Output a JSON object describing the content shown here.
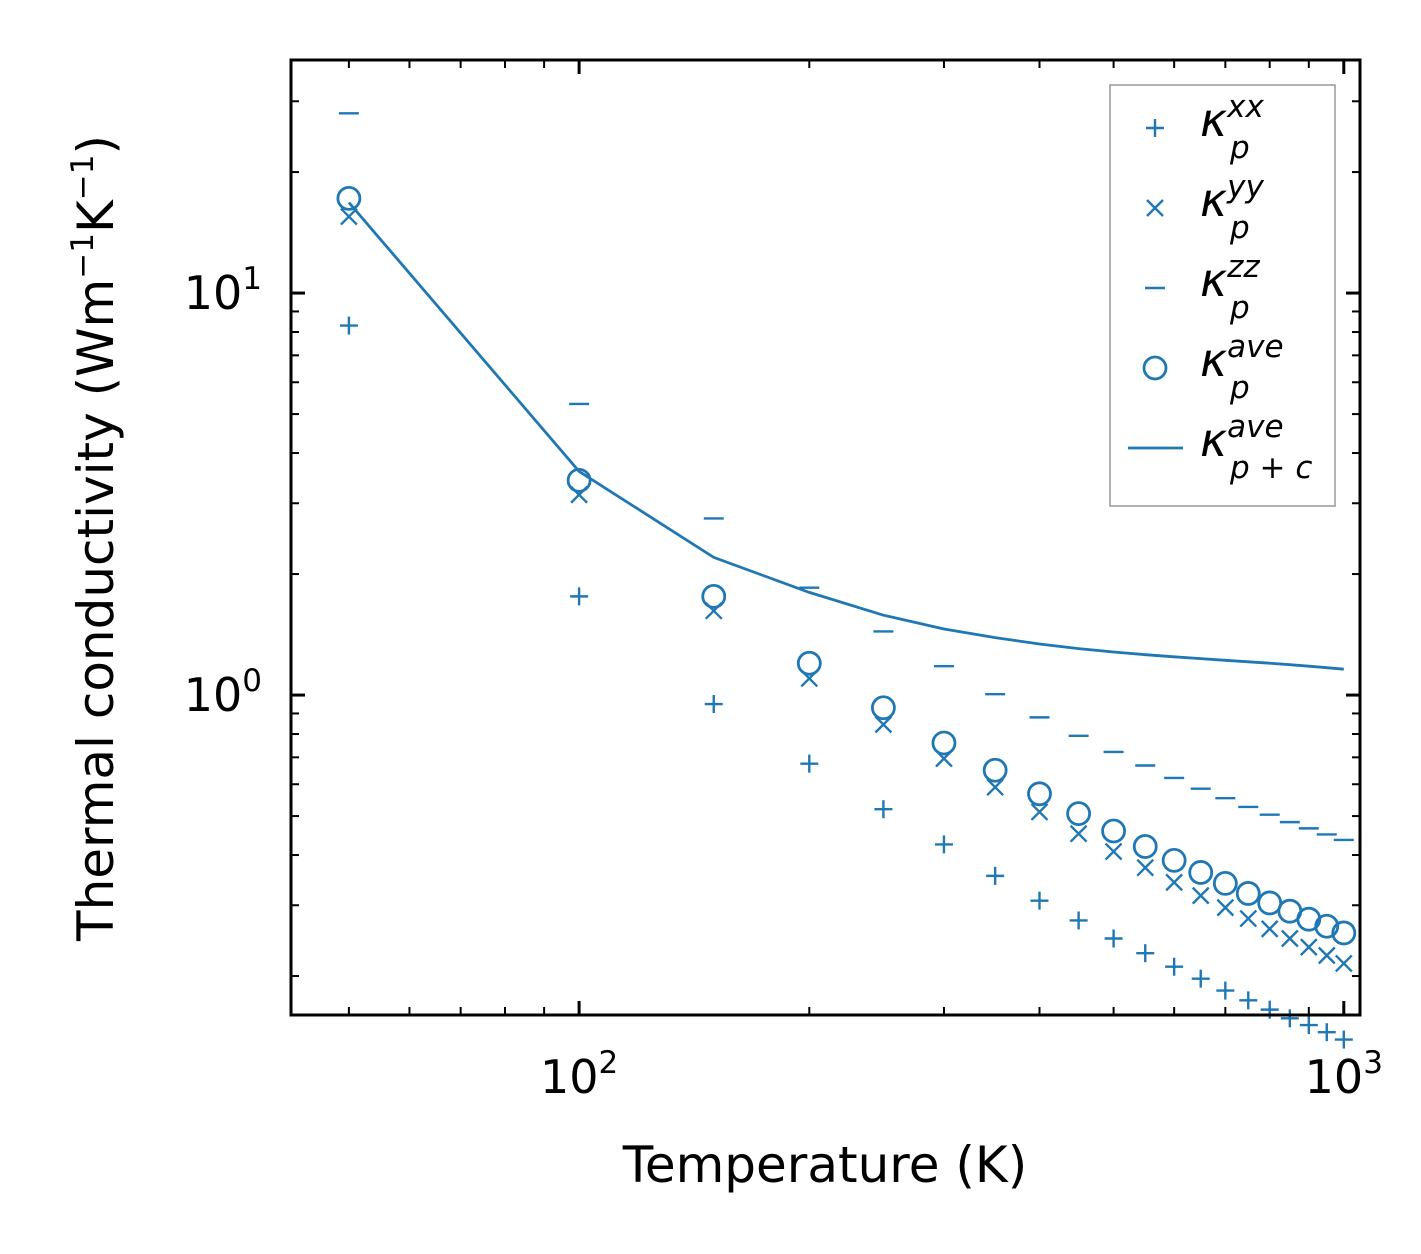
{
  "chart_data": {
    "type": "scatter",
    "xscale": "log",
    "yscale": "log",
    "xlabel": "Temperature (K)",
    "ylabel_main": "Thermal conductivity (Wm",
    "ylabel_sup1": "−1",
    "ylabel_mid": "K",
    "ylabel_sup2": "−1",
    "ylabel_end": ")",
    "xlim": [
      42,
      1050
    ],
    "ylim": [
      0.16,
      38
    ],
    "x_ticks": [
      {
        "base": "10",
        "exp": "2",
        "value": 100
      },
      {
        "base": "10",
        "exp": "3",
        "value": 1000
      }
    ],
    "y_ticks": [
      {
        "base": "10",
        "exp": "0",
        "value": 1
      },
      {
        "base": "10",
        "exp": "1",
        "value": 10
      }
    ],
    "color": "#1f77b4",
    "x": [
      50,
      100,
      150,
      200,
      250,
      300,
      350,
      400,
      450,
      500,
      550,
      600,
      650,
      700,
      750,
      800,
      850,
      900,
      950,
      1000
    ],
    "series": [
      {
        "name": "kp_xx",
        "marker": "plus",
        "label_base": "κ",
        "label_sup": "xx",
        "label_sub": "p",
        "values": [
          8.3,
          1.76,
          0.95,
          0.675,
          0.52,
          0.425,
          0.355,
          0.308,
          0.275,
          0.248,
          0.228,
          0.211,
          0.197,
          0.184,
          0.174,
          0.165,
          0.157,
          0.151,
          0.145,
          0.139
        ]
      },
      {
        "name": "kp_yy",
        "marker": "x",
        "label_base": "κ",
        "label_sup": "yy",
        "label_sub": "p",
        "values": [
          15.5,
          3.15,
          1.62,
          1.1,
          0.845,
          0.695,
          0.59,
          0.512,
          0.452,
          0.408,
          0.372,
          0.342,
          0.317,
          0.296,
          0.278,
          0.262,
          0.248,
          0.236,
          0.225,
          0.215
        ]
      },
      {
        "name": "kp_zz",
        "marker": "dash",
        "label_base": "κ",
        "label_sup": "zz",
        "label_sub": "p",
        "values": [
          28,
          5.3,
          2.75,
          1.85,
          1.44,
          1.18,
          1.005,
          0.88,
          0.792,
          0.722,
          0.668,
          0.622,
          0.585,
          0.554,
          0.527,
          0.504,
          0.483,
          0.466,
          0.45,
          0.436
        ]
      },
      {
        "name": "kp_ave",
        "marker": "circle",
        "label_base": "κ",
        "label_sup": "ave",
        "label_sub": "p",
        "values": [
          17.2,
          3.42,
          1.76,
          1.2,
          0.93,
          0.76,
          0.65,
          0.568,
          0.507,
          0.459,
          0.42,
          0.388,
          0.362,
          0.34,
          0.321,
          0.304,
          0.29,
          0.277,
          0.266,
          0.256
        ]
      },
      {
        "name": "kpc_ave",
        "marker": "line",
        "label_base": "κ",
        "label_sup": "ave",
        "label_sub": "p + c",
        "values": [
          16.8,
          3.6,
          2.2,
          1.8,
          1.58,
          1.46,
          1.39,
          1.34,
          1.305,
          1.28,
          1.26,
          1.245,
          1.232,
          1.22,
          1.21,
          1.2,
          1.19,
          1.18,
          1.17,
          1.16
        ]
      }
    ]
  }
}
